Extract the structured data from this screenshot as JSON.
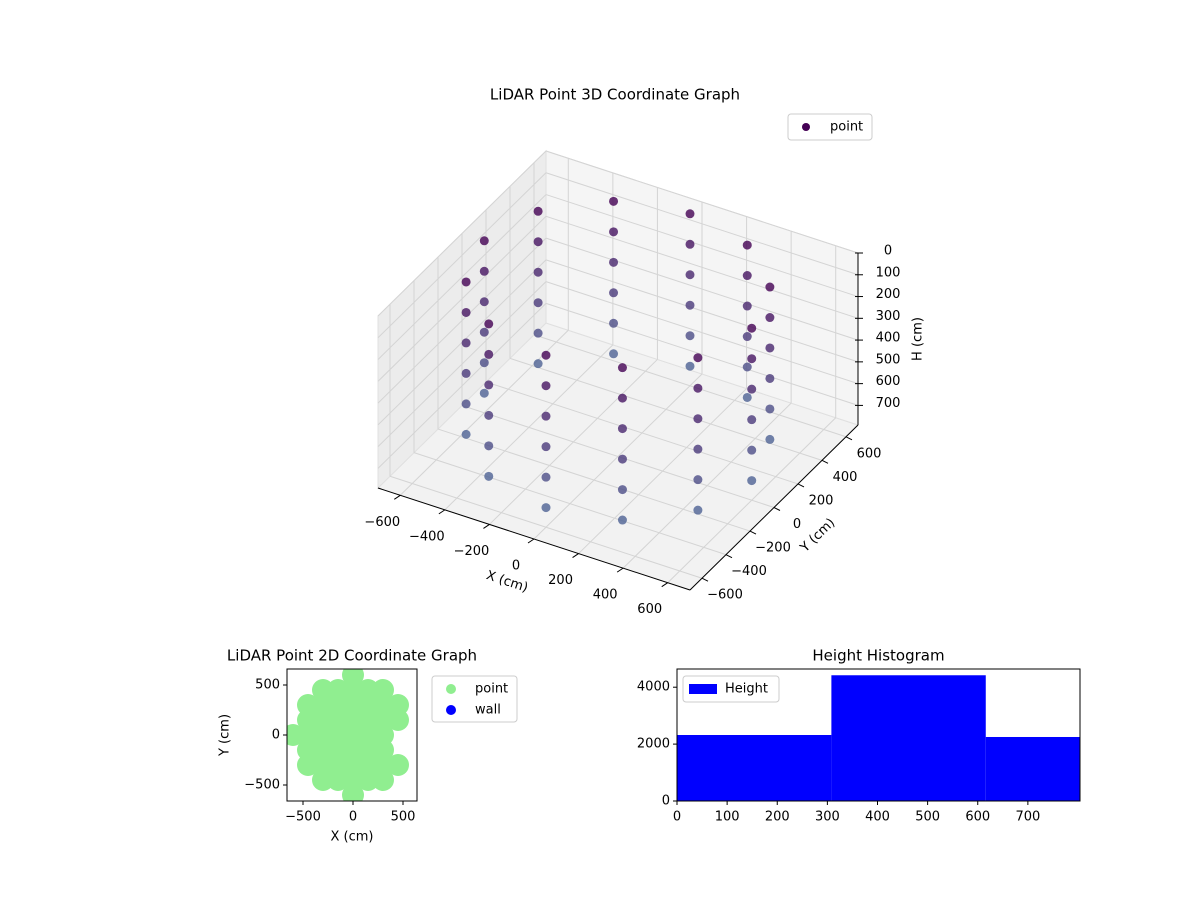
{
  "chart_data": [
    {
      "type": "scatter3d",
      "title": "LiDAR Point 3D Coordinate Graph",
      "xlabel": "X (cm)",
      "ylabel": "Y (cm)",
      "zlabel": "H (cm)",
      "xlim": [
        -700,
        700
      ],
      "ylim": [
        -700,
        700
      ],
      "zlim": [
        790,
        0
      ],
      "xticks": [
        {
          "value": -600,
          "label": "−600"
        },
        {
          "value": -400,
          "label": "−400"
        },
        {
          "value": -200,
          "label": "−200"
        },
        0,
        200,
        400,
        600
      ],
      "yticks": [
        {
          "value": -600,
          "label": "−600"
        },
        {
          "value": -400,
          "label": "−400"
        },
        {
          "value": -200,
          "label": "−200"
        },
        0,
        200,
        400,
        600
      ],
      "zticks": [
        0,
        100,
        200,
        300,
        400,
        500,
        600,
        700
      ],
      "legend": "upper right",
      "series": [
        {
          "name": "point",
          "colormap": [
            "#440154",
            "#4f6d9c"
          ],
          "x": [
            600,
            520,
            300,
            0,
            -300,
            -520,
            -600,
            -520,
            -300,
            0,
            300,
            520,
            600,
            520,
            300,
            0,
            -300,
            -520,
            -600,
            -520,
            -300,
            0,
            300,
            520,
            600,
            520,
            300,
            0,
            -300,
            -520,
            -600,
            -520,
            -300,
            0,
            300,
            520,
            600,
            520,
            300,
            0,
            -300,
            -520,
            -600,
            -520,
            -300,
            0,
            300,
            520,
            600,
            520,
            300,
            0,
            -300,
            -520,
            -600,
            -520,
            -300,
            0,
            300,
            520,
            600,
            520,
            300,
            0,
            -300,
            -520,
            -600,
            -520,
            -300,
            0,
            300,
            520
          ],
          "y": [
            0,
            300,
            520,
            600,
            520,
            300,
            0,
            -300,
            -520,
            -600,
            -520,
            -300,
            0,
            300,
            520,
            600,
            520,
            300,
            0,
            -300,
            -520,
            -600,
            -520,
            -300,
            0,
            300,
            520,
            600,
            520,
            300,
            0,
            -300,
            -520,
            -600,
            -520,
            -300,
            0,
            300,
            520,
            600,
            520,
            300,
            0,
            -300,
            -520,
            -600,
            -520,
            -300,
            0,
            300,
            520,
            600,
            520,
            300,
            0,
            -300,
            -520,
            -600,
            -520,
            -300,
            0,
            300,
            520,
            600,
            520,
            300,
            0,
            -300,
            -520,
            -600,
            -520,
            -300
          ],
          "h": [
            0,
            0,
            0,
            0,
            0,
            0,
            0,
            0,
            0,
            0,
            0,
            0,
            140,
            140,
            140,
            140,
            140,
            140,
            140,
            140,
            140,
            140,
            140,
            140,
            280,
            280,
            280,
            280,
            280,
            280,
            280,
            280,
            280,
            280,
            280,
            280,
            420,
            420,
            420,
            420,
            420,
            420,
            420,
            420,
            420,
            420,
            420,
            420,
            560,
            560,
            560,
            560,
            560,
            560,
            560,
            560,
            560,
            560,
            560,
            560,
            700,
            700,
            700,
            700,
            700,
            700,
            700,
            700,
            700,
            700,
            700,
            700
          ]
        }
      ]
    },
    {
      "type": "scatter",
      "title": "LiDAR Point 2D Coordinate Graph",
      "xlabel": "X (cm)",
      "ylabel": "Y (cm)",
      "xlim": [
        -660,
        640
      ],
      "ylim": [
        -660,
        660
      ],
      "xticks": [
        {
          "value": -500,
          "label": "−500"
        },
        0,
        500
      ],
      "yticks": [
        {
          "value": -500,
          "label": "−500"
        },
        0,
        500
      ],
      "legend": "outside right",
      "series": [
        {
          "name": "point",
          "color": "#90ee90",
          "x": [
            -600,
            -450,
            -450,
            -450,
            -450,
            -450,
            -300,
            -300,
            -300,
            -300,
            -300,
            -300,
            -300,
            -150,
            -150,
            -150,
            -150,
            -150,
            -150,
            -150,
            0,
            0,
            0,
            0,
            0,
            0,
            0,
            0,
            0,
            150,
            150,
            150,
            150,
            150,
            150,
            150,
            300,
            300,
            300,
            300,
            300,
            300,
            300,
            450,
            450,
            450
          ],
          "y": [
            0,
            -300,
            -150,
            0,
            150,
            300,
            -450,
            -300,
            -150,
            0,
            150,
            300,
            450,
            -450,
            -300,
            -150,
            0,
            150,
            300,
            450,
            -600,
            -450,
            -300,
            -150,
            0,
            150,
            300,
            450,
            600,
            -450,
            -300,
            -150,
            0,
            150,
            300,
            450,
            -450,
            -300,
            -150,
            0,
            150,
            300,
            450,
            -300,
            150,
            300
          ]
        },
        {
          "name": "wall",
          "color": "#0000ff",
          "x": [],
          "y": []
        }
      ]
    },
    {
      "type": "histogram",
      "title": "Height Histogram",
      "name": "Height",
      "color": "#0000ff",
      "bins": [
        0,
        308,
        616,
        804
      ],
      "values": [
        2320,
        4420,
        2250
      ],
      "xlim": [
        0,
        804
      ],
      "ylim": [
        0,
        4640
      ],
      "xticks": [
        0,
        100,
        200,
        300,
        400,
        500,
        600,
        700
      ],
      "yticks": [
        0,
        2000,
        4000
      ],
      "legend": "upper left"
    }
  ]
}
